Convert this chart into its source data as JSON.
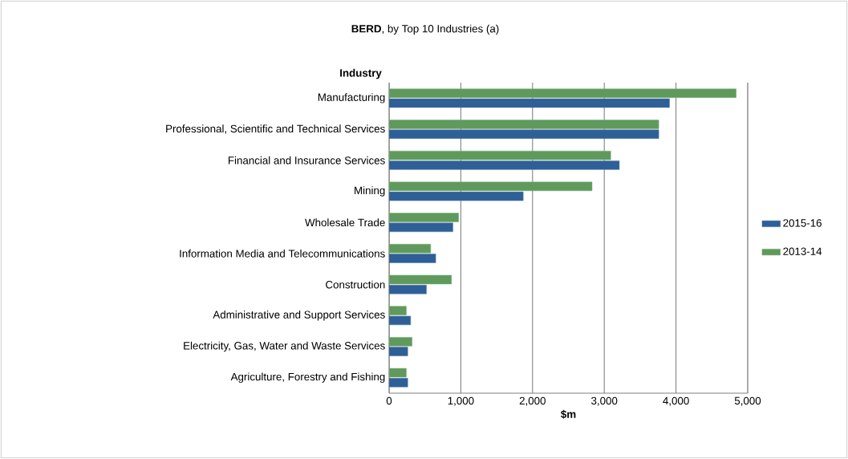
{
  "chart_data": {
    "type": "bar",
    "orientation": "horizontal",
    "title": "**BERD**, by Top 10 Industries (a)",
    "xlabel": "$m",
    "ylabel": "Industry",
    "categories": [
      "Manufacturing",
      "Professional, Scientific and Technical Services",
      "Financial and Insurance Services",
      "Mining",
      "Wholesale Trade",
      "Information Media and Telecommunications",
      "Construction",
      "Administrative and Support Services",
      "Electricity, Gas, Water and Waste Services",
      "Agriculture, Forestry and Fishing"
    ],
    "series": [
      {
        "name": "2015-16",
        "color": "#2e5f96",
        "values": [
          3910,
          3760,
          3210,
          1870,
          890,
          650,
          520,
          300,
          260,
          260
        ]
      },
      {
        "name": "2013-14",
        "color": "#5f9a5c",
        "values": [
          4840,
          3760,
          3090,
          2830,
          970,
          580,
          870,
          240,
          320,
          240
        ]
      }
    ],
    "xlim": [
      0,
      5000
    ],
    "xticks": [
      0,
      {
        "value": 1000,
        "label": "1,000"
      },
      {
        "value": 2000,
        "label": "2,000"
      },
      {
        "value": 3000,
        "label": "3,000"
      },
      {
        "value": 4000,
        "label": "4,000"
      },
      {
        "value": 5000,
        "label": "5,000"
      }
    ],
    "grid": "x",
    "legend": "right"
  }
}
